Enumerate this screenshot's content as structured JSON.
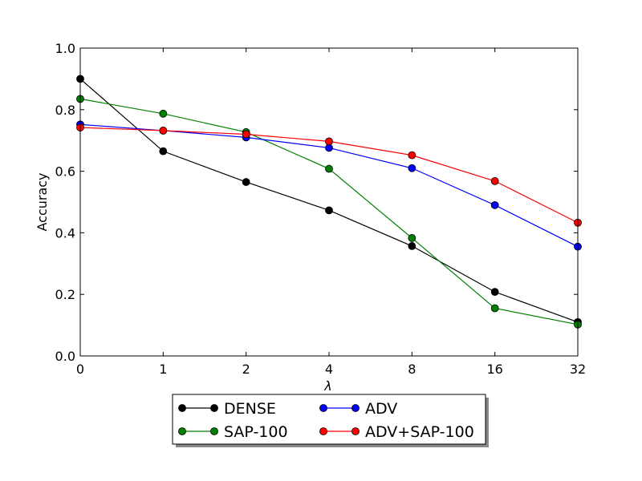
{
  "chart_data": {
    "type": "line",
    "title": "",
    "xlabel": "λ",
    "ylabel": "Accuracy",
    "categories": [
      "0",
      "1",
      "2",
      "4",
      "8",
      "16",
      "32"
    ],
    "ylim": [
      0.0,
      1.0
    ],
    "yticks": [
      "0.0",
      "0.2",
      "0.4",
      "0.6",
      "0.8",
      "1.0"
    ],
    "grid": false,
    "legend_position": "below plot, two columns",
    "series": [
      {
        "name": "DENSE",
        "color": "#000000",
        "values": [
          0.9,
          0.665,
          0.565,
          0.473,
          0.357,
          0.208,
          0.11
        ]
      },
      {
        "name": "SAP-100",
        "color": "#008000",
        "values": [
          0.835,
          0.787,
          0.727,
          0.608,
          0.383,
          0.155,
          0.102
        ]
      },
      {
        "name": "ADV",
        "color": "#0000ff",
        "values": [
          0.752,
          0.732,
          0.71,
          0.676,
          0.61,
          0.49,
          0.355
        ]
      },
      {
        "name": "ADV+SAP-100",
        "color": "#ff0000",
        "values": [
          0.742,
          0.732,
          0.72,
          0.697,
          0.652,
          0.568,
          0.433
        ]
      }
    ]
  }
}
